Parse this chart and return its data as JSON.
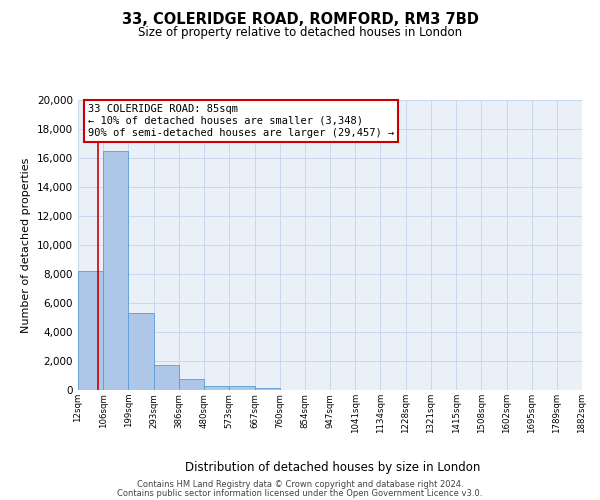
{
  "title": "33, COLERIDGE ROAD, ROMFORD, RM3 7BD",
  "subtitle": "Size of property relative to detached houses in London",
  "xlabel": "Distribution of detached houses by size in London",
  "ylabel": "Number of detached properties",
  "bar_heights": [
    8200,
    16500,
    5300,
    1750,
    750,
    300,
    250,
    150,
    0,
    0,
    0,
    0,
    0,
    0,
    0,
    0,
    0,
    0,
    0,
    0
  ],
  "bin_edges": [
    12,
    106,
    199,
    293,
    386,
    480,
    573,
    667,
    760,
    854,
    947,
    1041,
    1134,
    1228,
    1321,
    1415,
    1508,
    1602,
    1695,
    1789,
    1882
  ],
  "tick_labels": [
    "12sqm",
    "106sqm",
    "199sqm",
    "293sqm",
    "386sqm",
    "480sqm",
    "573sqm",
    "667sqm",
    "760sqm",
    "854sqm",
    "947sqm",
    "1041sqm",
    "1134sqm",
    "1228sqm",
    "1321sqm",
    "1415sqm",
    "1508sqm",
    "1602sqm",
    "1695sqm",
    "1789sqm",
    "1882sqm"
  ],
  "bar_color": "#aec6e8",
  "bar_edge_color": "#5b9bd5",
  "red_line_x": 85,
  "annotation_title": "33 COLERIDGE ROAD: 85sqm",
  "annotation_line1": "← 10% of detached houses are smaller (3,348)",
  "annotation_line2": "90% of semi-detached houses are larger (29,457) →",
  "annotation_box_color": "#ffffff",
  "annotation_box_edge": "#cc0000",
  "red_line_color": "#cc0000",
  "ylim": [
    0,
    20000
  ],
  "yticks": [
    0,
    2000,
    4000,
    6000,
    8000,
    10000,
    12000,
    14000,
    16000,
    18000,
    20000
  ],
  "grid_color": "#c8d8ec",
  "background_color": "#eaf0f8",
  "footer_line1": "Contains HM Land Registry data © Crown copyright and database right 2024.",
  "footer_line2": "Contains public sector information licensed under the Open Government Licence v3.0."
}
